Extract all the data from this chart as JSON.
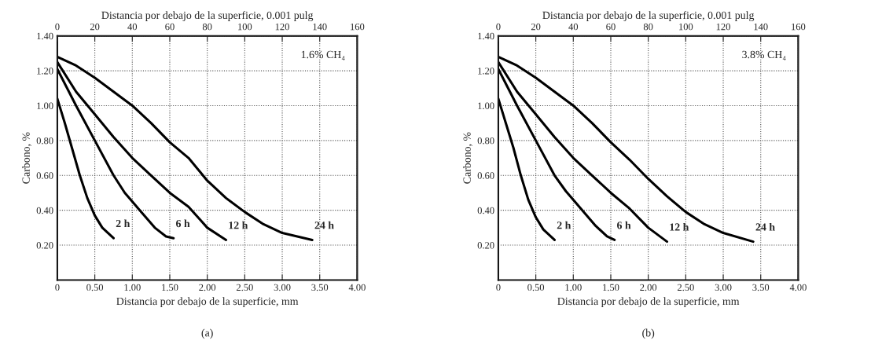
{
  "chart_data": [
    {
      "type": "line",
      "xlabel": "Distancia por debajo de la superficie, mm",
      "x2label": "Distancia por debajo de la superficie, 0.001 pulg",
      "ylabel": "Carbono, %",
      "xlim": [
        0,
        4
      ],
      "xticks": [
        0,
        {
          "value": 0.5,
          "label": "0.50"
        },
        {
          "value": 1,
          "label": "1.00"
        },
        {
          "value": 1.5,
          "label": "1.50"
        },
        {
          "value": 2,
          "label": "2.00"
        },
        {
          "value": 2.5,
          "label": "2.50"
        },
        {
          "value": 3,
          "label": "3.00"
        },
        {
          "value": 3.5,
          "label": "3.50"
        },
        {
          "value": 4,
          "label": "4.00"
        }
      ],
      "x2lim": [
        0,
        160
      ],
      "x2ticks": [
        0,
        20,
        40,
        60,
        80,
        100,
        120,
        140,
        160
      ],
      "ylim": [
        0,
        1.4
      ],
      "yticks": [
        {
          "value": 0.2,
          "label": "0.20"
        },
        {
          "value": 0.4,
          "label": "0.40"
        },
        {
          "value": 0.6,
          "label": "0.60"
        },
        {
          "value": 0.8,
          "label": "0.80"
        },
        {
          "value": 1.0,
          "label": "1.00"
        },
        {
          "value": 1.2,
          "label": "1.20"
        },
        {
          "value": 1.4,
          "label": "1.40"
        }
      ],
      "grid": true,
      "line_style": "solid",
      "annotations": [
        "1.6% CH₄",
        "(a)"
      ],
      "series": [
        {
          "name": "2 h",
          "color": "#000000",
          "x": [
            0,
            0.1,
            0.2,
            0.3,
            0.4,
            0.5,
            0.6,
            0.75
          ],
          "values": [
            1.04,
            0.9,
            0.75,
            0.6,
            0.47,
            0.37,
            0.3,
            0.24
          ]
        },
        {
          "name": "6 h",
          "color": "#000000",
          "x": [
            0,
            0.25,
            0.5,
            0.75,
            0.9,
            1.1,
            1.3,
            1.45,
            1.55
          ],
          "values": [
            1.21,
            1.0,
            0.8,
            0.6,
            0.5,
            0.4,
            0.3,
            0.25,
            0.24
          ]
        },
        {
          "name": "12 h",
          "color": "#000000",
          "x": [
            0,
            0.25,
            0.5,
            0.75,
            1.0,
            1.25,
            1.5,
            1.75,
            2.0,
            2.25
          ],
          "values": [
            1.25,
            1.08,
            0.95,
            0.82,
            0.7,
            0.6,
            0.5,
            0.42,
            0.3,
            0.23
          ]
        },
        {
          "name": "24 h",
          "color": "#000000",
          "x": [
            0,
            0.25,
            0.5,
            0.75,
            1.0,
            1.25,
            1.5,
            1.75,
            2.0,
            2.25,
            2.5,
            2.75,
            3.0,
            3.4
          ],
          "values": [
            1.28,
            1.23,
            1.16,
            1.08,
            1.0,
            0.9,
            0.79,
            0.7,
            0.57,
            0.47,
            0.39,
            0.32,
            0.27,
            0.23
          ]
        }
      ]
    },
    {
      "type": "line",
      "xlabel": "Distancia por debajo de la superficie, mm",
      "x2label": "Distancia por debajo de la superficie, 0.001 pulg",
      "ylabel": "Carbono, %",
      "xlim": [
        0,
        4
      ],
      "xticks": [
        0,
        {
          "value": 0.5,
          "label": "0.50"
        },
        {
          "value": 1,
          "label": "1.00"
        },
        {
          "value": 1.5,
          "label": "1.50"
        },
        {
          "value": 2,
          "label": "2.00"
        },
        {
          "value": 2.5,
          "label": "2.50"
        },
        {
          "value": 3,
          "label": "3.00"
        },
        {
          "value": 3.5,
          "label": "3.50"
        },
        {
          "value": 4,
          "label": "4.00"
        }
      ],
      "x2lim": [
        0,
        160
      ],
      "x2ticks": [
        0,
        20,
        40,
        60,
        80,
        100,
        120,
        140,
        160
      ],
      "ylim": [
        0,
        1.4
      ],
      "yticks": [
        {
          "value": 0.2,
          "label": "0.20"
        },
        {
          "value": 0.4,
          "label": "0.40"
        },
        {
          "value": 0.6,
          "label": "0.60"
        },
        {
          "value": 0.8,
          "label": "0.80"
        },
        {
          "value": 1.0,
          "label": "1.00"
        },
        {
          "value": 1.2,
          "label": "1.20"
        },
        {
          "value": 1.4,
          "label": "1.40"
        }
      ],
      "grid": true,
      "line_style": "solid",
      "annotations": [
        "3.8% CH₄",
        "(b)"
      ],
      "series": [
        {
          "name": "2 h",
          "color": "#000000",
          "x": [
            0,
            0.1,
            0.2,
            0.3,
            0.4,
            0.5,
            0.6,
            0.75
          ],
          "values": [
            1.04,
            0.9,
            0.76,
            0.6,
            0.46,
            0.36,
            0.29,
            0.23
          ]
        },
        {
          "name": "6 h",
          "color": "#000000",
          "x": [
            0,
            0.25,
            0.5,
            0.75,
            0.9,
            1.1,
            1.3,
            1.45,
            1.55
          ],
          "values": [
            1.21,
            1.0,
            0.8,
            0.6,
            0.51,
            0.41,
            0.31,
            0.25,
            0.23
          ]
        },
        {
          "name": "12 h",
          "color": "#000000",
          "x": [
            0,
            0.25,
            0.5,
            0.75,
            1.0,
            1.25,
            1.5,
            1.75,
            2.0,
            2.25
          ],
          "values": [
            1.25,
            1.08,
            0.95,
            0.82,
            0.7,
            0.6,
            0.5,
            0.41,
            0.3,
            0.22
          ]
        },
        {
          "name": "24 h",
          "color": "#000000",
          "x": [
            0,
            0.25,
            0.5,
            0.75,
            1.0,
            1.25,
            1.5,
            1.75,
            2.0,
            2.25,
            2.5,
            2.75,
            3.0,
            3.4
          ],
          "values": [
            1.28,
            1.23,
            1.16,
            1.08,
            1.0,
            0.9,
            0.79,
            0.69,
            0.58,
            0.48,
            0.39,
            0.32,
            0.27,
            0.22
          ]
        }
      ]
    }
  ]
}
